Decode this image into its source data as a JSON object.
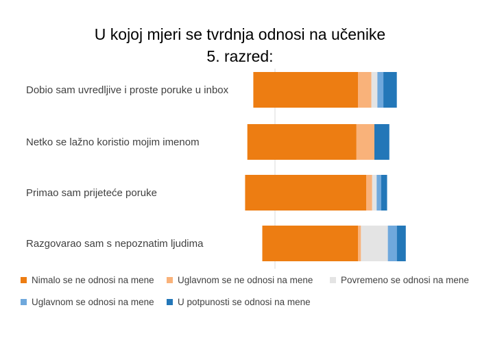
{
  "title_lines": [
    "U kojoj mjeri se tvrdnja odnosi na učenike",
    "5. razred:"
  ],
  "colors": {
    "series": [
      "#ED7D12",
      "#F9B27A",
      "#E4E4E4",
      "#6FA8DC",
      "#2377B8"
    ],
    "axis": "#D9D9D9",
    "label": "#404040"
  },
  "chart_data": {
    "type": "bar",
    "orientation": "horizontal",
    "stacked": true,
    "diverging": true,
    "title": "U kojoj mjeri se tvrdnja odnosi na učenike 5. razred:",
    "categories": [
      "Dobio sam uvredljive i proste poruke u inbox",
      "Netko se lažno koristio mojim imenom",
      "Primao sam prijeteće poruke",
      "Razgovarao sam s nepoznatim ljudima"
    ],
    "series": [
      {
        "name": "Nimalo se ne odnosi na mene",
        "values": [
          70,
          73,
          81,
          64
        ]
      },
      {
        "name": "Uglavnom se ne odnosi na mene",
        "values": [
          9,
          12,
          4,
          2
        ]
      },
      {
        "name": "Povremeno se odnosi na mene",
        "values": [
          4,
          0,
          3,
          18
        ]
      },
      {
        "name": "Uglavnom se odnosi na mene",
        "values": [
          4,
          0,
          3,
          6
        ]
      },
      {
        "name": "U potpunosti se odnosi na mene",
        "values": [
          9,
          10,
          4,
          6
        ]
      }
    ],
    "neutral_series_index": 2,
    "legend_position": "bottom",
    "grid": false
  }
}
